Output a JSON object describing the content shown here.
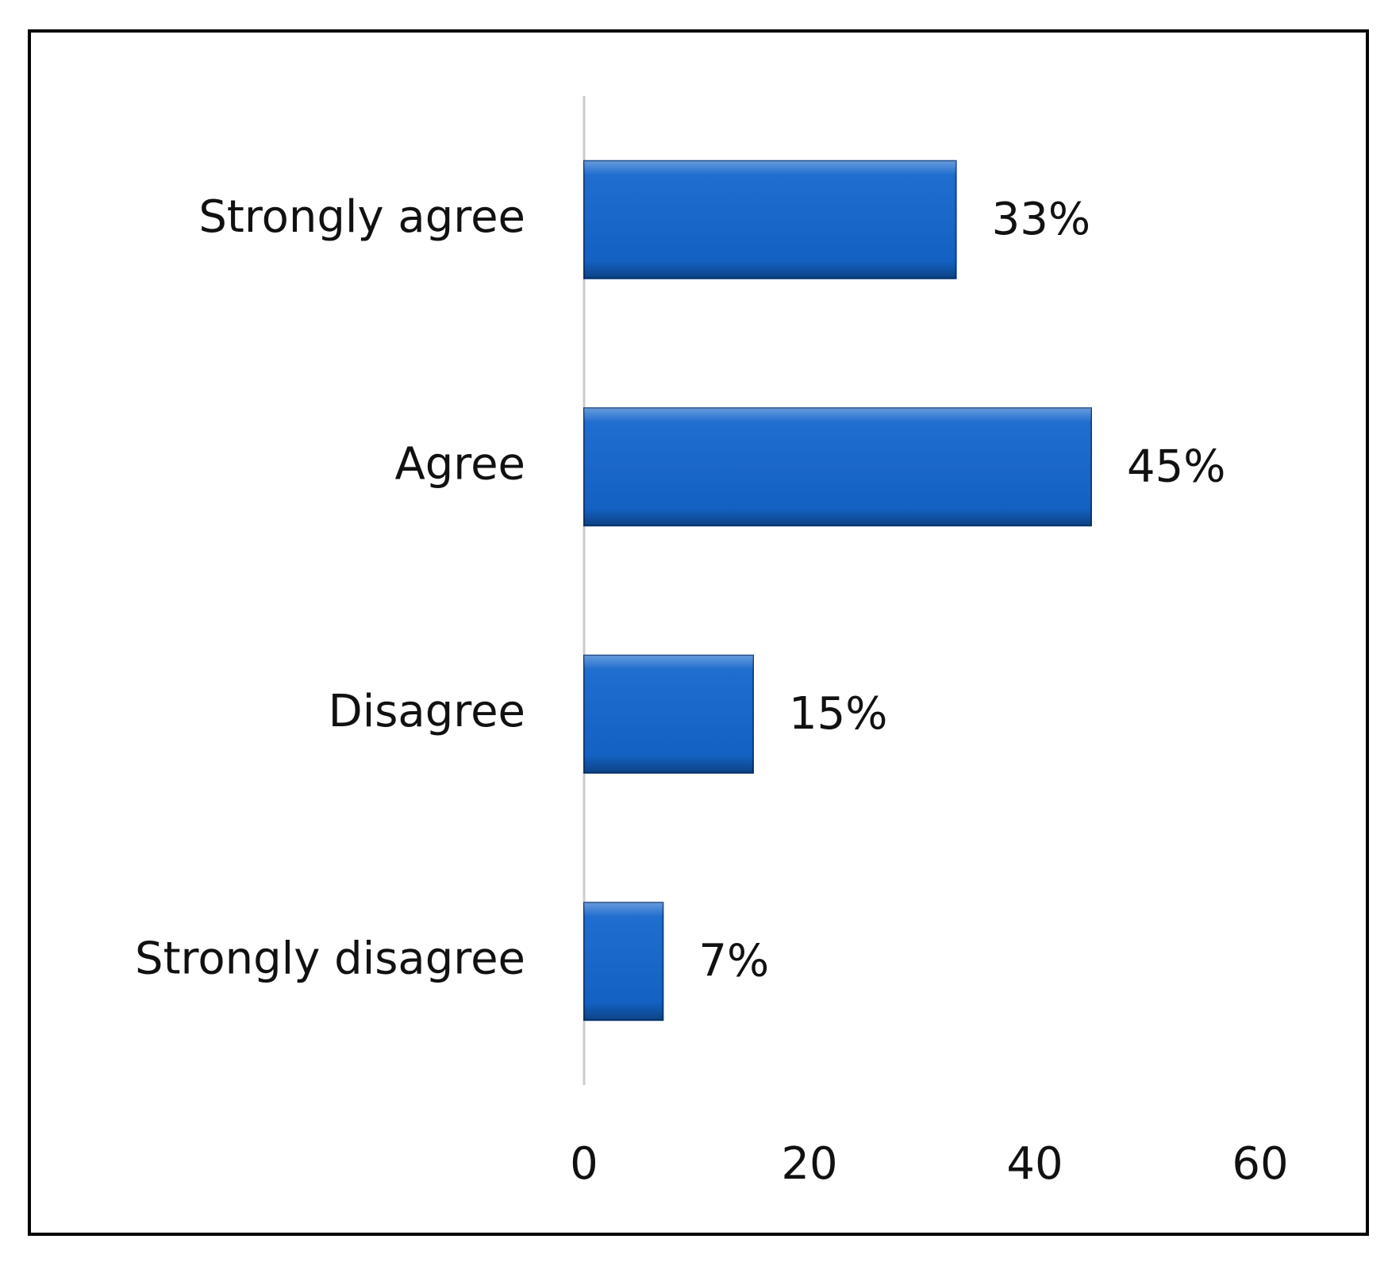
{
  "chart_data": {
    "type": "bar",
    "orientation": "horizontal",
    "categories": [
      "Strongly agree",
      "Agree",
      "Disagree",
      "Strongly disagree"
    ],
    "values": [
      33,
      45,
      15,
      7
    ],
    "value_labels": [
      "33%",
      "45%",
      "15%",
      "7%"
    ],
    "color": "#1466cc",
    "xlim": [
      0,
      60
    ],
    "xticks": [
      0,
      20,
      40,
      60
    ],
    "grid": false
  }
}
